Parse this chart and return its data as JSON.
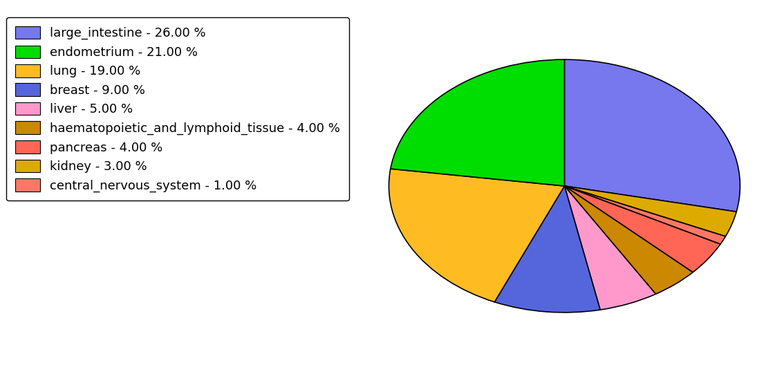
{
  "labels": [
    "large_intestine",
    "endometrium",
    "lung",
    "breast",
    "liver",
    "haematopoietic_and_lymphoid_tissue",
    "pancreas",
    "kidney",
    "central_nervous_system"
  ],
  "values": [
    26,
    21,
    19,
    9,
    5,
    4,
    4,
    3,
    1
  ],
  "colors": [
    "#7777EE",
    "#00DD00",
    "#FFBB22",
    "#5566DD",
    "#FF99CC",
    "#CC8800",
    "#FF6655",
    "#DDAA00",
    "#FF7766"
  ],
  "legend_labels": [
    "large_intestine - 26.00 %",
    "endometrium - 21.00 %",
    "lung - 19.00 %",
    "breast - 9.00 %",
    "liver - 5.00 %",
    "haematopoietic_and_lymphoid_tissue - 4.00 %",
    "pancreas - 4.00 %",
    "kidney - 3.00 %",
    "central_nervous_system - 1.00 %"
  ],
  "background_color": "#ffffff",
  "legend_fontsize": 13,
  "pie_aspect_ratio": 0.72,
  "startangle": 90
}
